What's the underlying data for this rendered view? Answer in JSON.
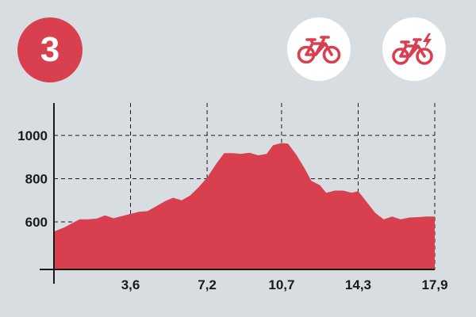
{
  "stage_number": "3",
  "colors": {
    "accent": "#d8404f",
    "background": "#d8dde1",
    "axis": "#1a1a1a",
    "badge_text": "#ffffff",
    "icon_bg": "#ffffff"
  },
  "icons": [
    "bicycle-icon",
    "electric-bicycle-icon"
  ],
  "chart_data": {
    "type": "area",
    "title": "",
    "xlabel": "",
    "ylabel": "",
    "xlim": [
      0,
      17.9
    ],
    "ylim": [
      380,
      1150
    ],
    "grid": "dashed",
    "x_ticks": [
      "3,6",
      "7,2",
      "10,7",
      "14,3",
      "17,9"
    ],
    "y_ticks": [
      "600",
      "800",
      "1000"
    ],
    "series": [
      {
        "x": [
          0,
          0.5,
          1.2,
          1.6,
          2.0,
          2.4,
          2.8,
          3.2,
          3.6,
          4.0,
          4.4,
          4.8,
          5.2,
          5.6,
          6.0,
          6.4,
          6.8,
          7.2,
          7.6,
          8.0,
          8.4,
          8.8,
          9.2,
          9.6,
          10.0,
          10.3,
          10.7,
          11.0,
          11.4,
          11.8,
          12.1,
          12.5,
          12.8,
          13.2,
          13.6,
          14.0,
          14.3,
          14.7,
          15.1,
          15.5,
          15.9,
          16.3,
          16.7,
          17.1,
          17.5,
          17.9
        ],
        "y": [
          555,
          575,
          612,
          612,
          615,
          630,
          617,
          627,
          637,
          647,
          650,
          672,
          695,
          712,
          700,
          722,
          760,
          805,
          865,
          918,
          918,
          915,
          920,
          908,
          915,
          955,
          965,
          962,
          910,
          845,
          790,
          770,
          735,
          745,
          745,
          735,
          742,
          692,
          642,
          612,
          625,
          612,
          620,
          622,
          625,
          625
        ]
      }
    ]
  }
}
